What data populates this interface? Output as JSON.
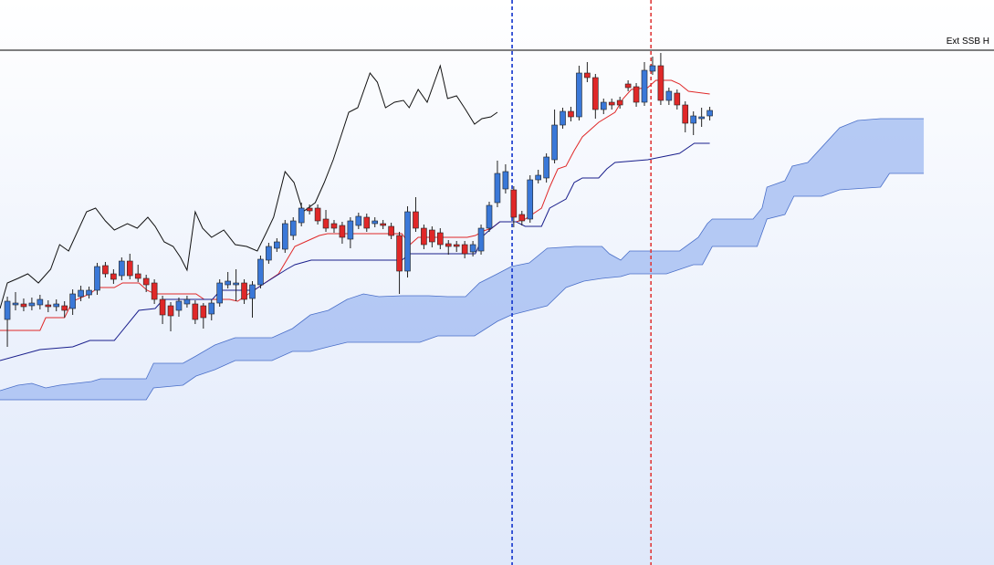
{
  "chart_data": {
    "type": "candlestick",
    "xlim": [
      -0.9,
      120.8
    ],
    "ylim": [
      0,
      619
    ],
    "up_color": "#3a78d8",
    "down_color": "#e02828",
    "categories": [
      null,
      null,
      null,
      null,
      null,
      null,
      null,
      null,
      null,
      null,
      null,
      null,
      null,
      null,
      null,
      null,
      null,
      null,
      null,
      null,
      null,
      null,
      null,
      null,
      null,
      null,
      null,
      null,
      null,
      null,
      null,
      null,
      null,
      null,
      null,
      null,
      null,
      null,
      null,
      null,
      null,
      null,
      null,
      null,
      null,
      null,
      null,
      null,
      null,
      null,
      null,
      null,
      null,
      null,
      null,
      null,
      null,
      null,
      null,
      null,
      null,
      null,
      null,
      null,
      null,
      null,
      null,
      null,
      null,
      null,
      null,
      null,
      null,
      null,
      null,
      null,
      null,
      null,
      null,
      null,
      null,
      null,
      null,
      null,
      null,
      null,
      null
    ],
    "open": [
      269,
      285,
      286,
      284,
      285,
      285,
      283,
      284,
      281,
      294,
      296,
      301,
      328,
      319,
      317,
      333,
      319,
      314,
      309,
      291,
      284,
      279,
      286,
      286,
      284,
      275,
      287,
      307,
      307,
      309,
      292,
      307,
      334,
      347,
      346,
      361,
      375,
      391,
      391,
      379,
      374,
      372,
      357,
      372,
      381,
      374,
      374,
      371,
      361,
      322,
      387,
      369,
      367,
      364,
      352,
      351,
      351,
      343,
      344,
      369,
      397,
      412,
      411,
      384,
      379,
      422,
      424,
      444,
      482,
      497,
      491,
      539,
      534,
      499,
      507,
      509,
      527,
      524,
      507,
      541,
      547,
      509,
      517,
      504,
      484,
      489,
      492
    ],
    "high": [
      294,
      299,
      292,
      293,
      296,
      290,
      291,
      289,
      302,
      306,
      305,
      331,
      332,
      324,
      337,
      341,
      329,
      318,
      313,
      295,
      288,
      293,
      295,
      290,
      287,
      291,
      313,
      321,
      324,
      313,
      311,
      339,
      353,
      358,
      378,
      381,
      397,
      395,
      395,
      389,
      378,
      376,
      381,
      386,
      385,
      381,
      378,
      375,
      365,
      393,
      403,
      373,
      371,
      369,
      356,
      355,
      355,
      355,
      373,
      398,
      443,
      439,
      415,
      388,
      427,
      433,
      451,
      499,
      501,
      502,
      547,
      551,
      538,
      511,
      511,
      513,
      531,
      528,
      551,
      557,
      561,
      523,
      521,
      508,
      497,
      501,
      502
    ],
    "low": [
      239,
      279,
      278,
      279,
      280,
      277,
      278,
      271,
      274,
      289,
      292,
      296,
      315,
      308,
      312,
      313,
      310,
      299,
      286,
      264,
      256,
      272,
      282,
      264,
      259,
      268,
      283,
      303,
      289,
      286,
      271,
      303,
      330,
      343,
      342,
      356,
      371,
      384,
      373,
      365,
      364,
      352,
      347,
      368,
      365,
      370,
      368,
      357,
      297,
      315,
      365,
      346,
      348,
      346,
      340,
      343,
      336,
      338,
      340,
      365,
      392,
      407,
      370,
      372,
      375,
      418,
      419,
      440,
      478,
      486,
      487,
      529,
      489,
      494,
      499,
      500,
      519,
      502,
      503,
      537,
      504,
      504,
      499,
      474,
      471,
      480,
      487
    ],
    "close": [
      289,
      287,
      283,
      287,
      291,
      283,
      286,
      279,
      297,
      301,
      301,
      327,
      319,
      313,
      333,
      317,
      314,
      307,
      291,
      274,
      273,
      289,
      291,
      269,
      271,
      287,
      309,
      311,
      309,
      291,
      307,
      335,
      349,
      354,
      374,
      377,
      391,
      388,
      377,
      369,
      369,
      359,
      377,
      382,
      369,
      377,
      372,
      361,
      322,
      387,
      369,
      351,
      354,
      351,
      349,
      349,
      341,
      351,
      369,
      394,
      429,
      431,
      381,
      377,
      422,
      427,
      447,
      482,
      497,
      491,
      539,
      534,
      499,
      507,
      504,
      504,
      523,
      507,
      542,
      547,
      509,
      519,
      504,
      484,
      492,
      491,
      498
    ],
    "lines": [
      {
        "color": "#e02828",
        "x": [
          -0.9,
          4.0,
          4.7,
          7.0,
          8.0,
          10.1,
          11.1,
          13.1,
          14.1,
          16.1,
          17.1,
          18.1,
          23.1,
          24.1,
          27.2,
          28.2,
          30.2,
          31.2,
          33.2,
          34.2,
          35.2,
          37.2,
          38.2,
          39.2,
          48.3,
          49.3,
          50.3,
          56.3,
          57.3,
          58.3,
          59.3,
          60.3,
          62.3,
          63.4,
          65.4,
          66.4,
          67.4,
          68.4,
          69.4,
          70.4,
          72.4,
          74.4,
          75.4,
          76.4,
          78.4,
          79.4,
          81.3,
          82.3,
          83.4,
          86.0
        ],
        "values": [
          257,
          257,
          271,
          271,
          289,
          297,
          304,
          304,
          309,
          309,
          301,
          297,
          297,
          291,
          291,
          289,
          301,
          307,
          319,
          334,
          349,
          357,
          361,
          363,
          363,
          351,
          359,
          359,
          361,
          366,
          369,
          376,
          376,
          379,
          391,
          414,
          434,
          437,
          454,
          469,
          485,
          496,
          511,
          521,
          523,
          531,
          531,
          527,
          519,
          516
        ]
      },
      {
        "color": "#1a1f8c",
        "x": [
          -0.9,
          4.0,
          8.0,
          10.1,
          13.1,
          16.1,
          18.1,
          19.1,
          25.1,
          26.1,
          30.2,
          31.2,
          34.2,
          35.2,
          37.2,
          48.3,
          49.3,
          57.3,
          58.3,
          59.3,
          60.3,
          62.3,
          63.4,
          65.4,
          66.4,
          68.4,
          69.4,
          70.4,
          72.4,
          73.4,
          74.4,
          78.4,
          82.3,
          84.1,
          86.0
        ],
        "values": [
          224,
          236,
          239,
          246,
          246,
          279,
          281,
          291,
          291,
          301,
          301,
          307,
          324,
          329,
          334,
          334,
          341,
          341,
          361,
          369,
          376,
          376,
          371,
          371,
          391,
          401,
          419,
          424,
          424,
          434,
          441,
          444,
          451,
          462,
          462
        ]
      },
      {
        "color": "#111111",
        "x": [
          -0.9,
          0,
          1.3,
          2.5,
          3.8,
          5.3,
          6.4,
          7.5,
          9.7,
          10.8,
          12.0,
          13.1,
          14.7,
          15.9,
          17.2,
          18.1,
          19.2,
          20.3,
          21.2,
          22.0,
          23.0,
          23.9,
          25.0,
          26.5,
          27.9,
          29.3,
          30.6,
          31.7,
          32.6,
          34.0,
          35.1,
          36.2,
          37.7,
          38.8,
          39.9,
          41.0,
          41.8,
          42.9,
          44.4,
          45.3,
          46.3,
          47.4,
          48.5,
          49.2,
          50.3,
          51.4,
          53.0,
          53.9,
          55.0,
          56.1,
          57.2,
          58.1,
          59.2,
          60.0
        ],
        "values": [
          281,
          309,
          314,
          319,
          309,
          324,
          351,
          344,
          387,
          391,
          377,
          367,
          374,
          369,
          381,
          371,
          354,
          349,
          337,
          323,
          387,
          369,
          359,
          367,
          351,
          349,
          344,
          364,
          381,
          431,
          419,
          387,
          397,
          419,
          444,
          474,
          496,
          501,
          539,
          529,
          501,
          507,
          509,
          501,
          521,
          507,
          547,
          511,
          514,
          499,
          483,
          489,
          491,
          496
        ]
      }
    ],
    "cloud": {
      "color": "#a9c1f2",
      "edge_color": "#4a6fc8",
      "upper": {
        "x": [
          -0.9,
          1.3,
          3.0,
          4.7,
          6.4,
          10.3,
          11.4,
          17.0,
          17.9,
          21.5,
          23.1,
          25.4,
          27.9,
          32.4,
          34.9,
          37.1,
          39.3,
          41.6,
          43.6,
          45.5,
          48.3,
          51.6,
          53.9,
          56.1,
          57.8,
          60.0,
          61.7,
          63.9,
          66.1,
          69.5,
          72.8,
          73.7,
          75.1,
          76.2,
          82.3,
          84.6,
          85.7,
          86.3,
          91.3,
          92.4,
          93.0,
          95.2,
          96.1,
          98.0,
          101.9,
          104.1,
          106.9,
          109.2,
          112.2
        ],
        "values": [
          191,
          197,
          199,
          194,
          197,
          201,
          204,
          204,
          221,
          221,
          229,
          241,
          249,
          249,
          259,
          274,
          279,
          291,
          297,
          294,
          295,
          295,
          294,
          294,
          309,
          319,
          327,
          331,
          347,
          349,
          349,
          341,
          334,
          344,
          344,
          359,
          374,
          379,
          379,
          391,
          414,
          421,
          437,
          441,
          479,
          487,
          489,
          489,
          489
        ]
      },
      "lower": {
        "x": [
          -0.9,
          17.0,
          17.9,
          21.5,
          23.1,
          25.4,
          27.9,
          32.4,
          34.9,
          37.1,
          39.3,
          41.6,
          50.5,
          52.7,
          57.2,
          60.0,
          61.7,
          63.9,
          66.1,
          68.4,
          70.6,
          72.8,
          75.1,
          76.2,
          80.7,
          84.0,
          85.1,
          86.3,
          91.8,
          93.0,
          95.2,
          96.3,
          99.7,
          101.9,
          106.9,
          108.0,
          112.2
        ],
        "values": [
          181,
          181,
          194,
          197,
          207,
          214,
          224,
          224,
          234,
          234,
          239,
          244,
          244,
          251,
          251,
          267,
          274,
          279,
          284,
          304,
          311,
          314,
          316,
          319,
          319,
          329,
          329,
          349,
          349,
          379,
          384,
          404,
          404,
          411,
          414,
          429,
          429
        ]
      }
    },
    "vlines": [
      {
        "x": 61.8,
        "color": "#1133cc"
      },
      {
        "x": 78.8,
        "color": "#e03a3a"
      }
    ],
    "hline": {
      "value": 564,
      "label": "Ext SSB H",
      "color": "#000000"
    }
  }
}
